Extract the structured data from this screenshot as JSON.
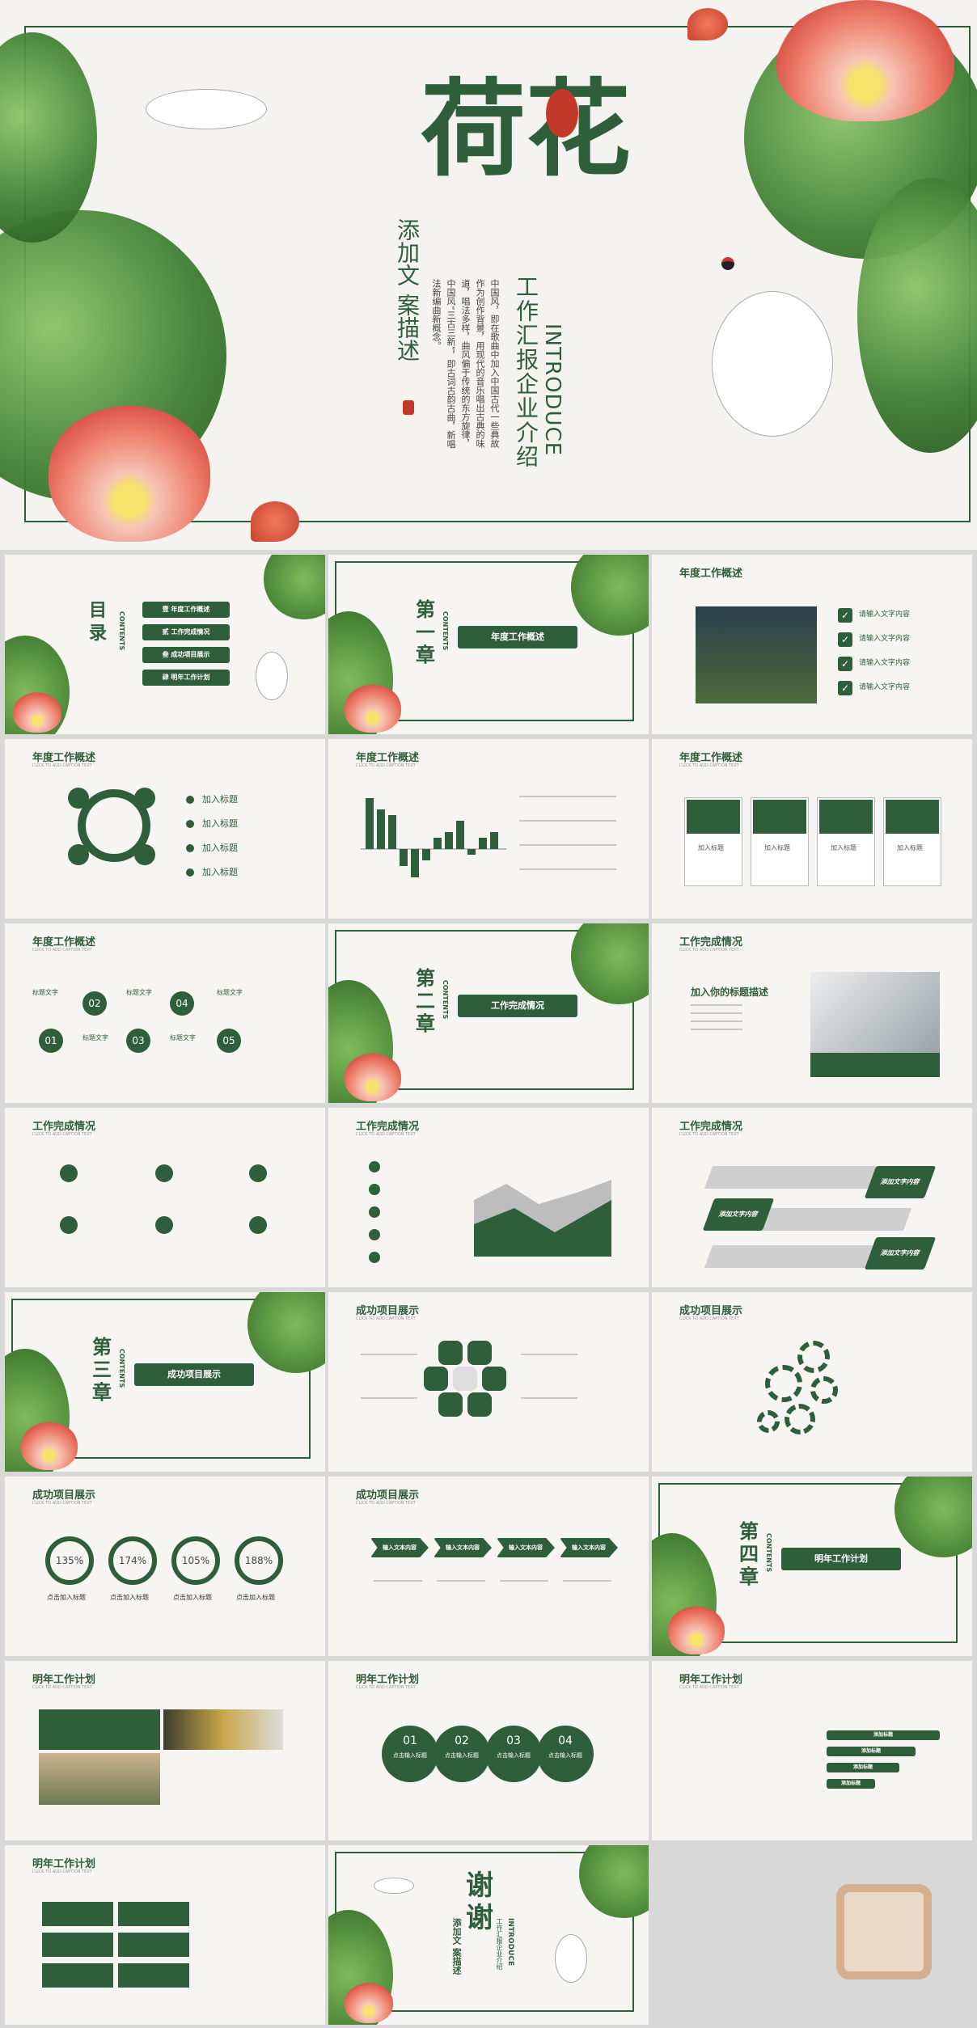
{
  "hero": {
    "title": "荷花",
    "subtitle_cn": "工作汇报企业介绍",
    "subtitle_en": "INTRODUCE",
    "side_title": "添加文 案描述",
    "body": "中国风，即在歌曲中加入中国古代一些典故作为创作背景，用现代的音乐唱出古典的味道，唱法多样，曲风偏于传统的东方旋律，中国风“三古三新”，即古词古韵古曲，新唱法新编曲新概念。"
  },
  "contents": {
    "label": "目录",
    "en": "CONTENTS",
    "items": [
      "壹 年度工作概述",
      "贰 工作完成情况",
      "叁 成功项目展示",
      "肆 明年工作计划"
    ]
  },
  "chapters": [
    {
      "num": "第一章",
      "label": "年度工作概述",
      "en": "CONTENTS"
    },
    {
      "num": "第二章",
      "label": "工作完成情况",
      "en": "CONTENTS"
    },
    {
      "num": "第三章",
      "label": "成功项目展示",
      "en": "CONTENTS"
    },
    {
      "num": "第四章",
      "label": "明年工作计划",
      "en": "CONTENTS"
    }
  ],
  "titles": {
    "s1": "年度工作概述",
    "s2": "工作完成情况",
    "s3": "成功项目展示",
    "s4": "明年工作计划",
    "sub": "CLICK TO ADD CAPTION TEXT"
  },
  "slide3": {
    "items": [
      "请输入文字内容",
      "请输入文字内容",
      "请输入文字内容",
      "请输入文字内容"
    ]
  },
  "slide4": {
    "items": [
      "加入标题",
      "加入标题",
      "加入标题",
      "加入标题"
    ]
  },
  "slide6": {
    "items": [
      "加入标题",
      "加入标题",
      "加入标题",
      "加入标题"
    ]
  },
  "slide7": {
    "nums": [
      "01",
      "02",
      "03",
      "04",
      "05"
    ],
    "labels": [
      "标题文字",
      "标题文字",
      "标题文字",
      "标题文字",
      "标题文字"
    ]
  },
  "slide9": {
    "heading": "加入你的标题描述"
  },
  "slide12": {
    "items": [
      "添加文字内容",
      "添加文字内容",
      "添加文字内容"
    ]
  },
  "rings": [
    "135%",
    "174%",
    "105%",
    "188%"
  ],
  "ring_label": "点击加入标题",
  "arrows": [
    "输入文本内容",
    "输入文本内容",
    "输入文本内容",
    "输入文本内容"
  ],
  "bubbles": [
    "01",
    "02",
    "03",
    "04"
  ],
  "bubble_label": "点击输入标题",
  "bars_label": "添加标题",
  "thanks": {
    "title": "谢谢",
    "sub": "工作汇报企业介绍",
    "en": "INTRODUCE",
    "side": "添加文 案描述"
  },
  "chart_data": {
    "type": "bar",
    "values": [
      9,
      7,
      6,
      -3,
      -5,
      -2,
      2,
      3,
      5,
      -1,
      2,
      3
    ]
  }
}
